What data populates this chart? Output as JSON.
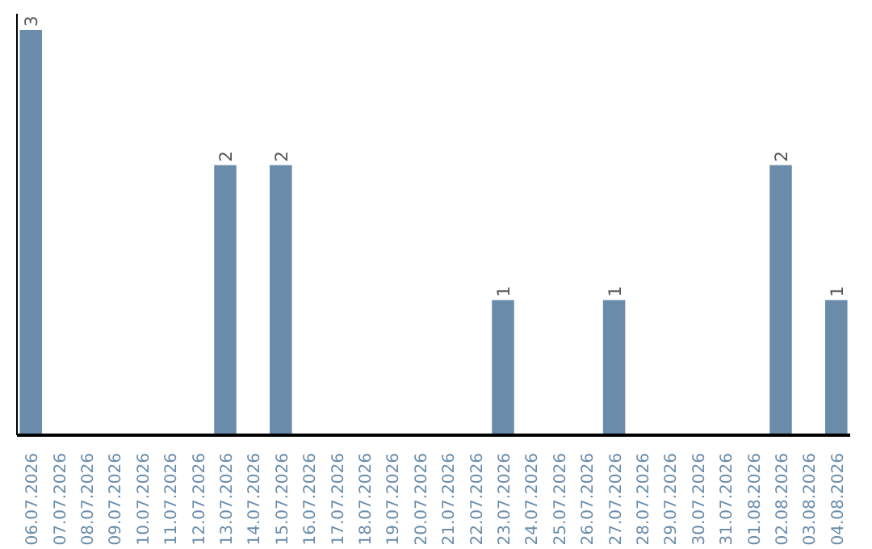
{
  "chart_data": {
    "type": "bar",
    "categories": [
      "06.07.2026",
      "07.07.2026",
      "08.07.2026",
      "09.07.2026",
      "10.07.2026",
      "11.07.2026",
      "12.07.2026",
      "13.07.2026",
      "14.07.2026",
      "15.07.2026",
      "16.07.2026",
      "17.07.2026",
      "18.07.2026",
      "19.07.2026",
      "20.07.2026",
      "21.07.2026",
      "22.07.2026",
      "23.07.2026",
      "24.07.2026",
      "25.07.2026",
      "26.07.2026",
      "27.07.2026",
      "28.07.2026",
      "29.07.2026",
      "30.07.2026",
      "31.07.2026",
      "01.08.2026",
      "02.08.2026",
      "03.08.2026",
      "04.08.2026"
    ],
    "values": [
      3,
      0,
      0,
      0,
      0,
      0,
      0,
      2,
      0,
      2,
      0,
      0,
      0,
      0,
      0,
      0,
      0,
      1,
      0,
      0,
      0,
      1,
      0,
      0,
      0,
      0,
      0,
      2,
      0,
      1
    ],
    "value_labels": [
      "3",
      null,
      null,
      null,
      null,
      null,
      null,
      "2",
      null,
      "2",
      null,
      null,
      null,
      null,
      null,
      null,
      null,
      "1",
      null,
      null,
      null,
      "1",
      null,
      null,
      null,
      null,
      null,
      "2",
      null,
      "1"
    ],
    "color": "#6a8caa",
    "grid": false,
    "tick_labels": "x"
  }
}
